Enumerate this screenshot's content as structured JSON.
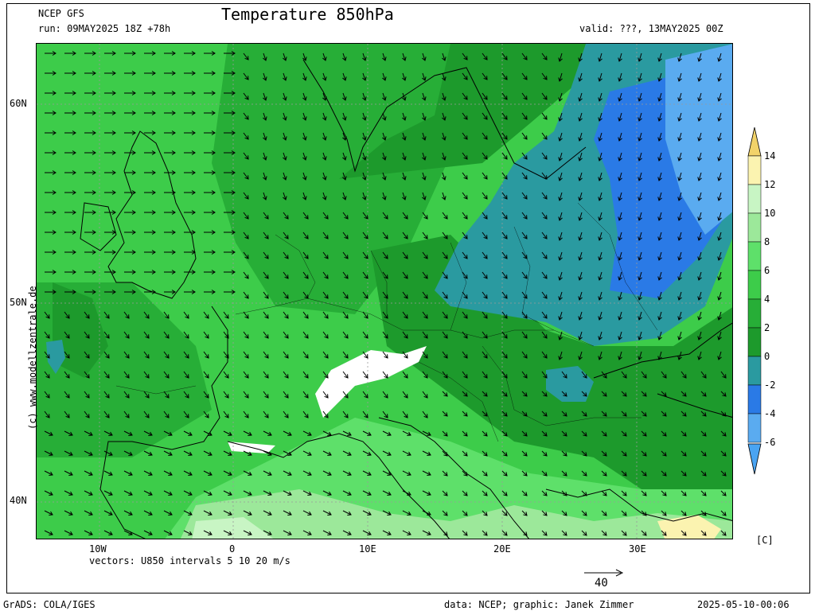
{
  "header": {
    "model": "NCEP GFS",
    "run": "run: 09MAY2025 18Z +78h",
    "title": "Temperature 850hPa",
    "valid": "valid: ???, 13MAY2025 00Z"
  },
  "map": {
    "lat_labels": [
      "60N",
      "50N",
      "40N"
    ],
    "lon_labels": [
      "10W",
      "0",
      "10E",
      "20E",
      "30E"
    ],
    "vectors_label": "vectors: U850 intervals 5 10 20 m/s",
    "reference_vector_value": "40",
    "watermark": "(c) www.modellzentrale.de",
    "fill_colors": {
      "below_minus6": "#4aa4f2",
      "minus6_minus4": "#5aabf0",
      "minus4_minus2": "#2a7ae6",
      "minus2_0": "#2a9aa0",
      "0_2": "#1d9a2c",
      "2_4": "#27ae37",
      "4_6": "#3dcc4a",
      "6_8": "#5ee06a",
      "8_10": "#9ce89a",
      "10_12": "#c8f5c4",
      "12_14": "#fbf3b0",
      "above_14": "#f2d36a",
      "freezing_terrain": "#ffffff"
    }
  },
  "colorbar": {
    "labels": [
      "14",
      "12",
      "10",
      "8",
      "6",
      "4",
      "2",
      "0",
      "-2",
      "-4",
      "-6"
    ],
    "colors": [
      "#fbf3b0",
      "#c8f5c4",
      "#9ce89a",
      "#5ee06a",
      "#3dcc4a",
      "#27ae37",
      "#1d9a2c",
      "#2a9aa0",
      "#2a7ae6",
      "#5aabf0"
    ],
    "top_arrow_color": "#f2d36a",
    "bottom_arrow_color": "#4aa4f2",
    "unit": "[C]"
  },
  "footer": {
    "grads": "GrADS: COLA/IGES",
    "credit": "data: NCEP; graphic: Janek Zimmer",
    "timestamp": "2025-05-10-00:06"
  }
}
